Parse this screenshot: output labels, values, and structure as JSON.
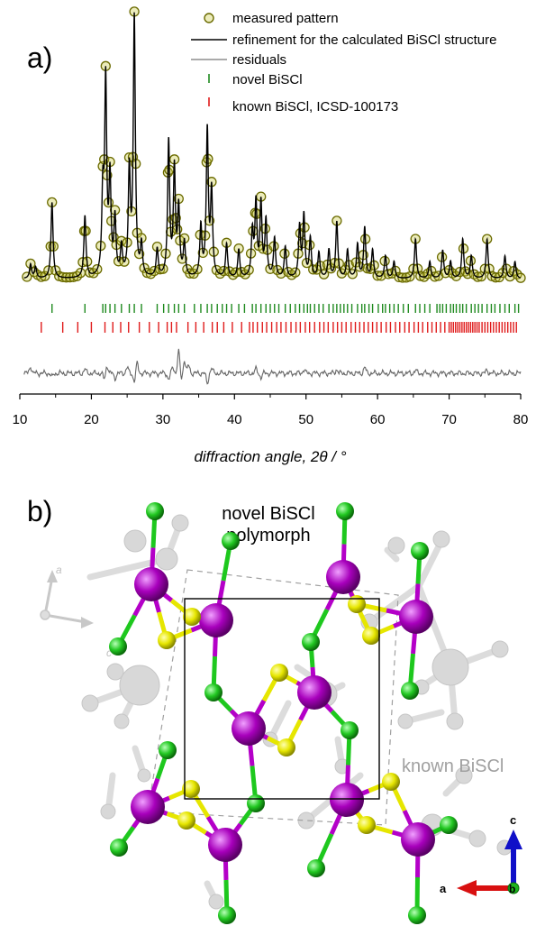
{
  "panel_a": {
    "label": "a)",
    "legend": [
      {
        "text": "measured pattern",
        "marker": "circle",
        "color": "#6b6b00",
        "fill": "#c8c83c"
      },
      {
        "text": "refinement for the calculated BiSCl structure",
        "marker": "line",
        "color": "#000000"
      },
      {
        "text": "residuals",
        "marker": "line",
        "color": "#777777"
      },
      {
        "text": "novel BiSCl",
        "marker": "tick",
        "color": "#1f8a1f"
      },
      {
        "text": "known BiSCl,  ICSD-100173",
        "marker": "tick",
        "color": "#e01b1b"
      }
    ]
  },
  "panel_b": {
    "label": "b)",
    "title_line1": "novel BiSCl",
    "title_line2": "polymorph",
    "known_label": "known BiSCl",
    "ghost_axes": {
      "a": "a",
      "c": "c"
    },
    "axes": {
      "c": "c",
      "a": "a",
      "b": "b"
    },
    "colors": {
      "Bi": "#b400c8",
      "S": "#e6e600",
      "Cl": "#1ec81e",
      "ghost": "#d8d8d8"
    }
  },
  "chart_data": {
    "type": "line",
    "xlabel": "diffraction angle, 2θ / °",
    "xlim": [
      10,
      80
    ],
    "x_ticks": [
      10,
      20,
      30,
      40,
      50,
      60,
      70,
      80
    ],
    "ylabel": "",
    "grid": false,
    "legend_position": "top-right",
    "background_level": 0.06,
    "peaks": [
      {
        "x": 11.5,
        "h": 0.05
      },
      {
        "x": 12.2,
        "h": 0.04
      },
      {
        "x": 14.5,
        "h": 0.27
      },
      {
        "x": 19.1,
        "h": 0.22
      },
      {
        "x": 21.6,
        "h": 0.28
      },
      {
        "x": 22.0,
        "h": 0.68
      },
      {
        "x": 22.6,
        "h": 0.34
      },
      {
        "x": 23.3,
        "h": 0.2
      },
      {
        "x": 24.2,
        "h": 0.1
      },
      {
        "x": 25.3,
        "h": 0.37
      },
      {
        "x": 26.0,
        "h": 0.92
      },
      {
        "x": 27.0,
        "h": 0.11
      },
      {
        "x": 29.2,
        "h": 0.1
      },
      {
        "x": 30.8,
        "h": 0.48
      },
      {
        "x": 31.6,
        "h": 0.38
      },
      {
        "x": 32.2,
        "h": 0.24
      },
      {
        "x": 33.0,
        "h": 0.12
      },
      {
        "x": 35.3,
        "h": 0.18
      },
      {
        "x": 36.2,
        "h": 0.52
      },
      {
        "x": 36.8,
        "h": 0.3
      },
      {
        "x": 38.9,
        "h": 0.12
      },
      {
        "x": 40.6,
        "h": 0.1
      },
      {
        "x": 42.5,
        "h": 0.16
      },
      {
        "x": 43.0,
        "h": 0.26
      },
      {
        "x": 43.7,
        "h": 0.26
      },
      {
        "x": 44.4,
        "h": 0.2
      },
      {
        "x": 45.6,
        "h": 0.14
      },
      {
        "x": 47.1,
        "h": 0.11
      },
      {
        "x": 49.1,
        "h": 0.18
      },
      {
        "x": 49.7,
        "h": 0.22
      },
      {
        "x": 50.6,
        "h": 0.14
      },
      {
        "x": 51.8,
        "h": 0.09
      },
      {
        "x": 53.2,
        "h": 0.1
      },
      {
        "x": 54.3,
        "h": 0.2
      },
      {
        "x": 55.8,
        "h": 0.1
      },
      {
        "x": 57.2,
        "h": 0.12
      },
      {
        "x": 58.2,
        "h": 0.18
      },
      {
        "x": 59.3,
        "h": 0.1
      },
      {
        "x": 61.1,
        "h": 0.08
      },
      {
        "x": 62.3,
        "h": 0.06
      },
      {
        "x": 65.3,
        "h": 0.14
      },
      {
        "x": 67.3,
        "h": 0.06
      },
      {
        "x": 69.1,
        "h": 0.1
      },
      {
        "x": 70.2,
        "h": 0.06
      },
      {
        "x": 71.9,
        "h": 0.14
      },
      {
        "x": 73.1,
        "h": 0.08
      },
      {
        "x": 75.3,
        "h": 0.14
      },
      {
        "x": 77.8,
        "h": 0.08
      },
      {
        "x": 79.2,
        "h": 0.06
      }
    ],
    "measured_points_2theta": [
      11.0,
      11.5,
      12.0,
      12.5,
      13.0,
      13.5,
      14.0,
      14.3,
      14.5,
      14.7,
      15.0,
      15.5,
      16.0,
      16.5,
      17.0,
      17.5,
      18.0,
      18.5,
      18.8,
      19.0,
      19.2,
      19.4,
      19.8,
      20.3,
      20.8,
      21.3,
      21.6,
      21.8,
      22.0,
      22.2,
      22.4,
      22.6,
      22.8,
      23.1,
      23.3,
      23.5,
      23.8,
      24.2,
      24.6,
      25.0,
      25.3,
      25.6,
      25.8,
      26.0,
      26.2,
      26.4,
      26.7,
      27.0,
      27.4,
      27.8,
      28.3,
      28.8,
      29.2,
      29.6,
      30.0,
      30.4,
      30.7,
      30.9,
      31.1,
      31.4,
      31.6,
      31.8,
      32.0,
      32.2,
      32.4,
      32.7,
      33.0,
      33.4,
      33.8,
      34.3,
      34.8,
      35.2,
      35.6,
      35.9,
      36.1,
      36.3,
      36.5,
      36.8,
      37.1,
      37.5,
      38.0,
      38.5,
      38.9,
      39.3,
      39.8,
      40.2,
      40.6,
      41.0,
      41.5,
      42.0,
      42.3,
      42.6,
      42.9,
      43.1,
      43.4,
      43.7,
      44.0,
      44.3,
      44.6,
      45.0,
      45.5,
      46.0,
      46.5,
      47.0,
      47.5,
      48.0,
      48.5,
      48.9,
      49.2,
      49.5,
      49.8,
      50.1,
      50.5,
      51.0,
      51.5,
      52.0,
      52.5,
      53.0,
      53.5,
      54.0,
      54.3,
      54.6,
      55.0,
      55.5,
      56.0,
      56.5,
      57.0,
      57.5,
      58.0,
      58.3,
      58.6,
      59.0,
      59.5,
      60.0,
      60.5,
      61.0,
      61.5,
      62.0,
      62.5,
      63.0,
      63.5,
      64.0,
      64.5,
      65.0,
      65.3,
      65.6,
      66.0,
      66.5,
      67.0,
      67.5,
      68.0,
      68.5,
      69.0,
      69.5,
      70.0,
      70.5,
      71.0,
      71.5,
      72.0,
      72.3,
      72.6,
      73.0,
      73.5,
      74.0,
      74.5,
      75.0,
      75.3,
      75.6,
      76.0,
      76.5,
      77.0,
      77.5,
      78.0,
      78.5,
      79.0,
      79.5,
      80.0
    ],
    "novel_BiSCl_reflections": [
      14.5,
      19.1,
      21.6,
      22.0,
      22.6,
      23.3,
      24.2,
      25.3,
      26.0,
      27.0,
      29.2,
      30.1,
      30.8,
      31.6,
      32.2,
      33.0,
      34.4,
      35.3,
      36.2,
      36.8,
      37.6,
      38.3,
      38.9,
      39.6,
      40.6,
      41.4,
      42.5,
      43.0,
      43.7,
      44.4,
      45.0,
      45.6,
      46.2,
      47.1,
      47.8,
      48.5,
      49.1,
      49.7,
      50.2,
      50.6,
      51.2,
      51.8,
      52.4,
      53.2,
      53.8,
      54.3,
      54.8,
      55.3,
      55.8,
      56.4,
      57.2,
      57.8,
      58.2,
      58.8,
      59.3,
      60.1,
      60.7,
      61.1,
      61.7,
      62.3,
      62.9,
      63.6,
      64.3,
      65.3,
      65.9,
      66.6,
      67.3,
      68.3,
      68.7,
      69.1,
      69.6,
      70.2,
      70.6,
      71.0,
      71.5,
      71.9,
      72.4,
      73.1,
      73.6,
      74.1,
      74.6,
      75.3,
      75.9,
      76.4,
      77.1,
      77.8,
      78.4,
      79.2,
      79.7
    ],
    "known_BiSCl_reflections": [
      13.0,
      16.0,
      18.1,
      20.0,
      21.9,
      23.0,
      24.1,
      25.2,
      26.7,
      28.1,
      29.4,
      30.6,
      31.2,
      31.9,
      33.5,
      34.6,
      35.7,
      36.9,
      37.6,
      38.5,
      39.7,
      41.0,
      42.1,
      42.6,
      43.2,
      43.9,
      44.5,
      45.2,
      45.9,
      46.5,
      47.2,
      47.9,
      48.6,
      49.2,
      49.9,
      50.5,
      51.2,
      51.9,
      52.5,
      53.1,
      53.8,
      54.4,
      55.0,
      55.6,
      56.3,
      56.9,
      57.5,
      58.1,
      58.7,
      59.3,
      59.9,
      60.5,
      61.2,
      61.8,
      62.5,
      63.1,
      63.8,
      64.4,
      65.1,
      65.7,
      66.3,
      67.0,
      67.6,
      68.2,
      68.8,
      69.4,
      70.0,
      70.3,
      70.6,
      70.9,
      71.2,
      71.5,
      71.8,
      72.1,
      72.4,
      72.7,
      73.0,
      73.3,
      73.6,
      73.9,
      74.2,
      74.6,
      75.0,
      75.4,
      75.8,
      76.2,
      76.6,
      77.0,
      77.4,
      77.8,
      78.2,
      78.6,
      79.0,
      79.4
    ],
    "residual_features": [
      {
        "x": 11.5,
        "d": 0.035
      },
      {
        "x": 14.5,
        "d": -0.02
      },
      {
        "x": 19.1,
        "d": 0.02
      },
      {
        "x": 21.8,
        "d": -0.03
      },
      {
        "x": 22.2,
        "d": 0.04
      },
      {
        "x": 23.3,
        "d": -0.025
      },
      {
        "x": 25.0,
        "d": 0.03
      },
      {
        "x": 26.0,
        "d": -0.04
      },
      {
        "x": 26.4,
        "d": 0.05
      },
      {
        "x": 30.8,
        "d": -0.03
      },
      {
        "x": 31.4,
        "d": 0.03
      },
      {
        "x": 32.2,
        "d": 0.11
      },
      {
        "x": 32.6,
        "d": -0.03
      },
      {
        "x": 33.0,
        "d": 0.07
      },
      {
        "x": 33.6,
        "d": 0.04
      },
      {
        "x": 36.2,
        "d": -0.05
      },
      {
        "x": 36.8,
        "d": 0.025
      },
      {
        "x": 43.0,
        "d": 0.02
      },
      {
        "x": 43.7,
        "d": -0.02
      },
      {
        "x": 49.7,
        "d": 0.02
      },
      {
        "x": 54.3,
        "d": 0.02
      },
      {
        "x": 58.2,
        "d": 0.03
      },
      {
        "x": 65.3,
        "d": 0.015
      },
      {
        "x": 75.3,
        "d": 0.015
      }
    ]
  }
}
